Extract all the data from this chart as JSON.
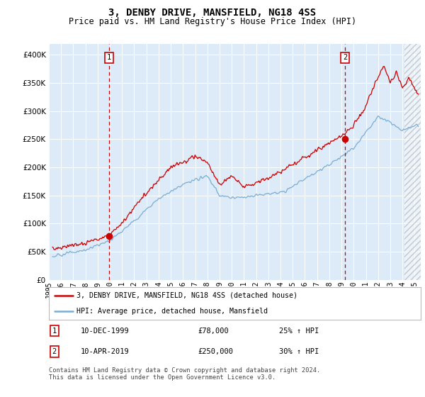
{
  "title": "3, DENBY DRIVE, MANSFIELD, NG18 4SS",
  "subtitle": "Price paid vs. HM Land Registry's House Price Index (HPI)",
  "ylim": [
    0,
    420000
  ],
  "xlim_start": 1995.3,
  "xlim_end": 2025.5,
  "plot_bg": "#ddeaf7",
  "grid_color": "#ffffff",
  "hpi_color": "#7aadd4",
  "property_color": "#cc0000",
  "marker1_x": 1999.95,
  "marker1_y": 78000,
  "marker2_x": 2019.28,
  "marker2_y": 250000,
  "annotation1_label": "1",
  "annotation2_label": "2",
  "legend_label1": "3, DENBY DRIVE, MANSFIELD, NG18 4SS (detached house)",
  "legend_label2": "HPI: Average price, detached house, Mansfield",
  "note1_num": "1",
  "note1_date": "10-DEC-1999",
  "note1_price": "£78,000",
  "note1_hpi": "25% ↑ HPI",
  "note2_num": "2",
  "note2_date": "10-APR-2019",
  "note2_price": "£250,000",
  "note2_hpi": "30% ↑ HPI",
  "footer": "Contains HM Land Registry data © Crown copyright and database right 2024.\nThis data is licensed under the Open Government Licence v3.0.",
  "title_fontsize": 10,
  "subtitle_fontsize": 8.5,
  "tick_fontsize": 7.5,
  "hatch_start": 2024.17
}
